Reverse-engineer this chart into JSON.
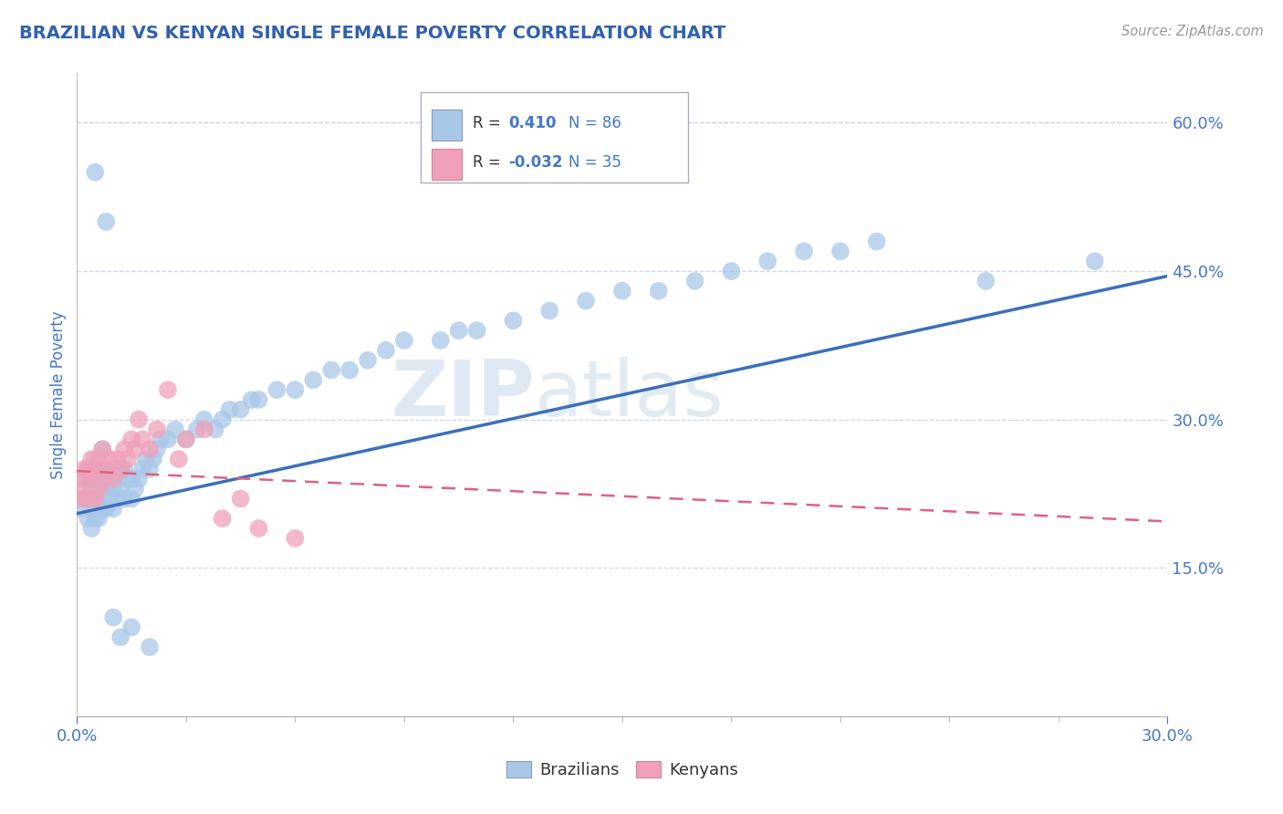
{
  "title": "BRAZILIAN VS KENYAN SINGLE FEMALE POVERTY CORRELATION CHART",
  "source_text": "Source: ZipAtlas.com",
  "ylabel": "Single Female Poverty",
  "watermark_zip": "ZIP",
  "watermark_atlas": "atlas",
  "xlim": [
    0.0,
    0.3
  ],
  "ylim": [
    0.0,
    0.65
  ],
  "ytick_positions": [
    0.15,
    0.3,
    0.45,
    0.6
  ],
  "ytick_labels": [
    "15.0%",
    "30.0%",
    "45.0%",
    "60.0%"
  ],
  "brazil_color": "#a8c8e8",
  "kenya_color": "#f0a0b8",
  "brazil_line_color": "#3a6fbd",
  "kenya_line_color": "#e06080",
  "title_color": "#3060b0",
  "tick_color": "#4477cc",
  "grid_color": "#c8d8ee",
  "background_color": "#ffffff",
  "legend_r1_val": "0.410",
  "legend_n1": "N = 86",
  "legend_r2_val": "-0.032",
  "legend_n2": "N = 35",
  "brazil_x": [
    0.001,
    0.002,
    0.002,
    0.003,
    0.003,
    0.003,
    0.004,
    0.004,
    0.004,
    0.005,
    0.005,
    0.005,
    0.005,
    0.006,
    0.006,
    0.006,
    0.007,
    0.007,
    0.007,
    0.007,
    0.008,
    0.008,
    0.008,
    0.009,
    0.009,
    0.01,
    0.01,
    0.01,
    0.011,
    0.011,
    0.012,
    0.012,
    0.013,
    0.013,
    0.014,
    0.015,
    0.015,
    0.016,
    0.017,
    0.018,
    0.019,
    0.02,
    0.021,
    0.022,
    0.023,
    0.025,
    0.027,
    0.03,
    0.033,
    0.035,
    0.038,
    0.04,
    0.042,
    0.045,
    0.048,
    0.05,
    0.055,
    0.06,
    0.065,
    0.07,
    0.075,
    0.08,
    0.085,
    0.09,
    0.1,
    0.105,
    0.11,
    0.12,
    0.13,
    0.14,
    0.15,
    0.16,
    0.17,
    0.18,
    0.19,
    0.2,
    0.21,
    0.22,
    0.25,
    0.28,
    0.005,
    0.008,
    0.01,
    0.012,
    0.015,
    0.02
  ],
  "brazil_y": [
    0.21,
    0.22,
    0.24,
    0.2,
    0.22,
    0.25,
    0.19,
    0.21,
    0.23,
    0.2,
    0.22,
    0.24,
    0.26,
    0.2,
    0.22,
    0.24,
    0.21,
    0.23,
    0.25,
    0.27,
    0.21,
    0.23,
    0.25,
    0.22,
    0.24,
    0.21,
    0.23,
    0.25,
    0.22,
    0.24,
    0.23,
    0.25,
    0.22,
    0.25,
    0.24,
    0.22,
    0.24,
    0.23,
    0.24,
    0.25,
    0.26,
    0.25,
    0.26,
    0.27,
    0.28,
    0.28,
    0.29,
    0.28,
    0.29,
    0.3,
    0.29,
    0.3,
    0.31,
    0.31,
    0.32,
    0.32,
    0.33,
    0.33,
    0.34,
    0.35,
    0.35,
    0.36,
    0.37,
    0.38,
    0.38,
    0.39,
    0.39,
    0.4,
    0.41,
    0.42,
    0.43,
    0.43,
    0.44,
    0.45,
    0.46,
    0.47,
    0.47,
    0.48,
    0.44,
    0.46,
    0.55,
    0.5,
    0.1,
    0.08,
    0.09,
    0.07
  ],
  "kenya_x": [
    0.001,
    0.001,
    0.002,
    0.002,
    0.003,
    0.003,
    0.004,
    0.004,
    0.005,
    0.005,
    0.006,
    0.006,
    0.007,
    0.007,
    0.008,
    0.009,
    0.01,
    0.011,
    0.012,
    0.013,
    0.014,
    0.015,
    0.016,
    0.017,
    0.018,
    0.02,
    0.022,
    0.025,
    0.028,
    0.03,
    0.035,
    0.04,
    0.045,
    0.05,
    0.06
  ],
  "kenya_y": [
    0.22,
    0.24,
    0.23,
    0.25,
    0.22,
    0.25,
    0.24,
    0.26,
    0.22,
    0.25,
    0.23,
    0.26,
    0.24,
    0.27,
    0.25,
    0.26,
    0.24,
    0.26,
    0.25,
    0.27,
    0.26,
    0.28,
    0.27,
    0.3,
    0.28,
    0.27,
    0.29,
    0.33,
    0.26,
    0.28,
    0.29,
    0.2,
    0.22,
    0.19,
    0.18
  ]
}
